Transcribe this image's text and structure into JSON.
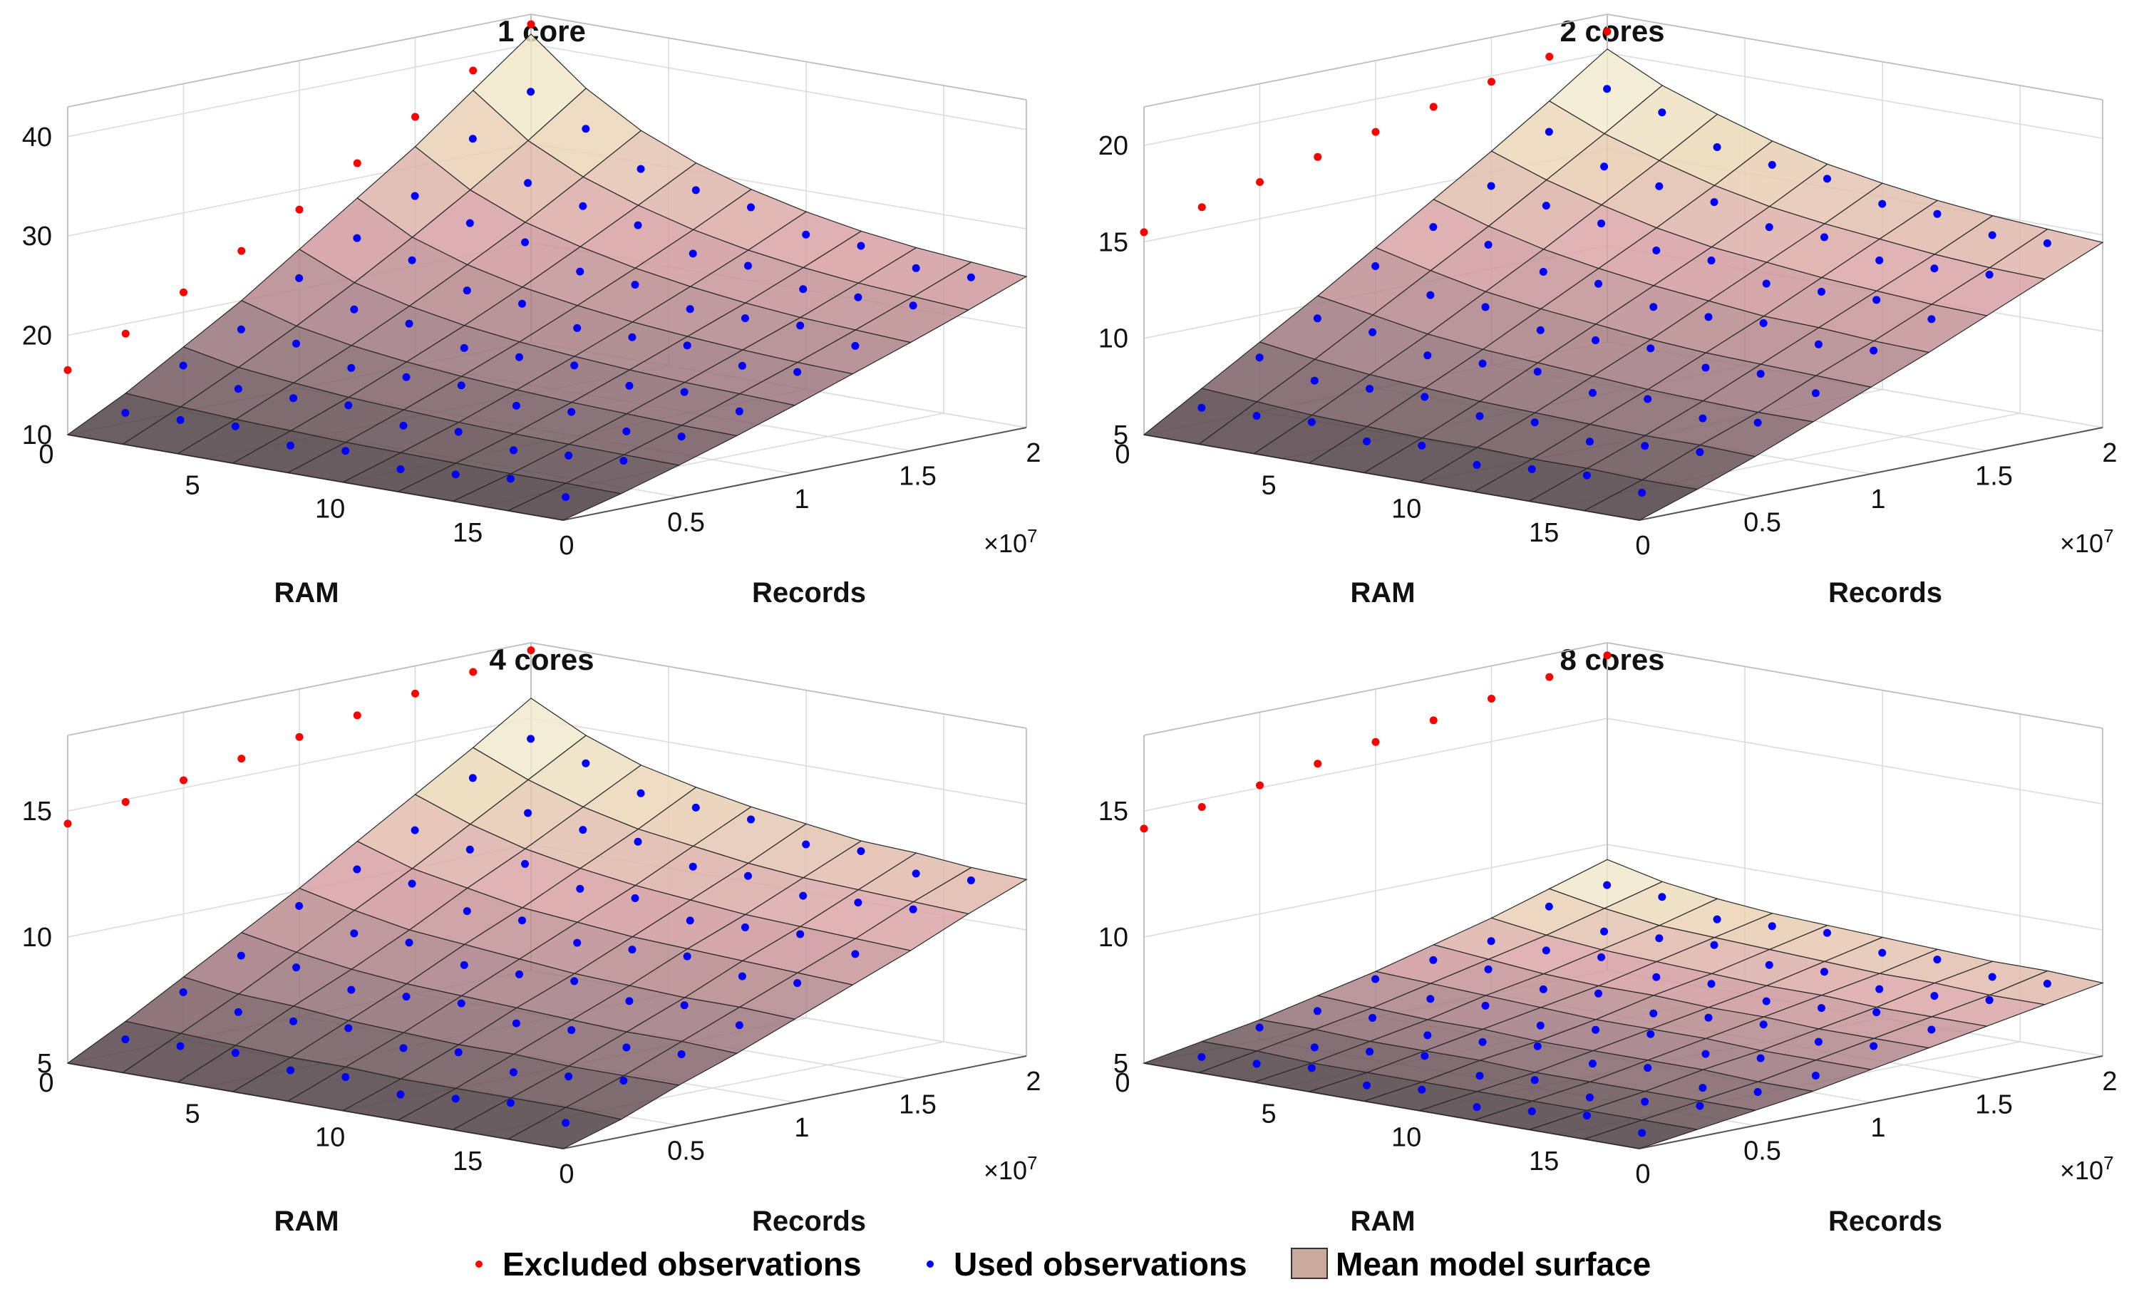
{
  "chart_data": [
    {
      "type": "surface3d",
      "title": "1 core",
      "xlabel": "RAM",
      "ylabel": "Records",
      "x_ticks": [
        "0",
        "5",
        "10",
        "15"
      ],
      "y_ticks": [
        "0",
        "0.5",
        "1",
        "1.5",
        "2"
      ],
      "y_multiplier": "×10",
      "y_multiplier_exp": "7",
      "z_ticks": [
        10,
        20,
        30,
        40
      ],
      "zlim": [
        10,
        43
      ],
      "ram_values": [
        0,
        2,
        4,
        6,
        8,
        10,
        12,
        14,
        16,
        18
      ],
      "records_values_x1e7": [
        0,
        0.25,
        0.5,
        0.75,
        1.0,
        1.25,
        1.5,
        1.75,
        2.0
      ],
      "model_surface_rows": [
        [
          10.0,
          13.0,
          16.5,
          20.0,
          24.0,
          28.0,
          32.0,
          36.5,
          41.0
        ],
        [
          10.0,
          12.6,
          15.4,
          18.4,
          21.6,
          25.0,
          28.6,
          32.4,
          36.5
        ],
        [
          10.0,
          12.3,
          14.8,
          17.4,
          20.2,
          23.2,
          26.3,
          29.7,
          33.2
        ],
        [
          10.0,
          12.1,
          14.3,
          16.7,
          19.2,
          21.9,
          24.8,
          27.8,
          30.9
        ],
        [
          10.0,
          11.9,
          14.0,
          16.2,
          18.5,
          21.0,
          23.6,
          26.3,
          29.2
        ],
        [
          10.0,
          11.8,
          13.7,
          15.8,
          18.0,
          20.3,
          22.7,
          25.2,
          27.9
        ],
        [
          10.0,
          11.7,
          13.5,
          15.5,
          17.6,
          19.8,
          22.0,
          24.4,
          26.9
        ],
        [
          10.0,
          11.6,
          13.4,
          15.3,
          17.3,
          19.4,
          21.5,
          23.8,
          26.2
        ],
        [
          10.0,
          11.6,
          13.3,
          15.1,
          17.1,
          19.1,
          21.2,
          23.4,
          25.7
        ],
        [
          10.0,
          11.5,
          13.2,
          15.0,
          16.9,
          18.9,
          20.9,
          23.0,
          25.2
        ]
      ],
      "excluded_observations": [
        16.5,
        19.0,
        22.0,
        25.0,
        28.0,
        31.5,
        35.0,
        38.5,
        42.0
      ]
    },
    {
      "type": "surface3d",
      "title": "2 cores",
      "xlabel": "RAM",
      "ylabel": "Records",
      "x_ticks": [
        "0",
        "5",
        "10",
        "15"
      ],
      "y_ticks": [
        "0",
        "0.5",
        "1",
        "1.5",
        "2"
      ],
      "y_multiplier": "×10",
      "y_multiplier_exp": "7",
      "z_ticks": [
        5,
        10,
        15,
        20
      ],
      "zlim": [
        5,
        22
      ],
      "ram_values": [
        0,
        2,
        4,
        6,
        8,
        10,
        12,
        14,
        16,
        18
      ],
      "records_values_x1e7": [
        0,
        0.25,
        0.5,
        0.75,
        1.0,
        1.25,
        1.5,
        1.75,
        2.0
      ],
      "model_surface_rows": [
        [
          5.0,
          6.8,
          8.6,
          10.4,
          12.3,
          14.2,
          16.1,
          18.1,
          20.2
        ],
        [
          5.0,
          6.6,
          8.2,
          9.9,
          11.6,
          13.3,
          15.1,
          16.9,
          18.8
        ],
        [
          5.0,
          6.4,
          7.9,
          9.4,
          11.0,
          12.6,
          14.3,
          16.0,
          17.8
        ],
        [
          5.0,
          6.3,
          7.7,
          9.1,
          10.6,
          12.1,
          13.6,
          15.2,
          16.9
        ],
        [
          5.0,
          6.2,
          7.5,
          8.9,
          10.3,
          11.7,
          13.1,
          14.6,
          16.2
        ],
        [
          5.0,
          6.2,
          7.4,
          8.7,
          10.0,
          11.4,
          12.8,
          14.2,
          15.7
        ],
        [
          5.0,
          6.1,
          7.3,
          8.5,
          9.8,
          11.1,
          12.5,
          13.9,
          15.3
        ],
        [
          5.0,
          6.1,
          7.2,
          8.4,
          9.7,
          11.0,
          12.3,
          13.6,
          15.0
        ],
        [
          5.0,
          6.0,
          7.2,
          8.3,
          9.6,
          10.8,
          12.1,
          13.4,
          14.8
        ],
        [
          5.0,
          6.0,
          7.1,
          8.3,
          9.5,
          10.7,
          12.0,
          13.3,
          14.6
        ]
      ],
      "excluded_observations": [
        15.5,
        16.2,
        16.9,
        17.6,
        18.3,
        19.0,
        19.7,
        20.4,
        21.1
      ]
    },
    {
      "type": "surface3d",
      "title": "4 cores",
      "xlabel": "RAM",
      "ylabel": "Records",
      "x_ticks": [
        "0",
        "5",
        "10",
        "15"
      ],
      "y_ticks": [
        "0",
        "0.5",
        "1",
        "1.5",
        "2"
      ],
      "y_multiplier": "×10",
      "y_multiplier_exp": "7",
      "z_ticks": [
        5,
        10,
        15
      ],
      "zlim": [
        5,
        18
      ],
      "ram_values": [
        0,
        2,
        4,
        6,
        8,
        10,
        12,
        14,
        16,
        18
      ],
      "records_values_x1e7": [
        0,
        0.25,
        0.5,
        0.75,
        1.0,
        1.25,
        1.5,
        1.75,
        2.0
      ],
      "model_surface_rows": [
        [
          5.0,
          6.2,
          7.5,
          8.8,
          10.1,
          11.5,
          12.9,
          14.3,
          15.8
        ],
        [
          5.0,
          6.1,
          7.2,
          8.4,
          9.6,
          10.8,
          12.1,
          13.4,
          14.7
        ],
        [
          5.0,
          6.0,
          7.1,
          8.1,
          9.2,
          10.4,
          11.5,
          12.7,
          13.9
        ],
        [
          5.0,
          5.9,
          6.9,
          7.9,
          9.0,
          10.0,
          11.1,
          12.2,
          13.4
        ],
        [
          5.0,
          5.9,
          6.8,
          7.8,
          8.8,
          9.8,
          10.8,
          11.9,
          13.0
        ],
        [
          5.0,
          5.8,
          6.7,
          7.7,
          8.6,
          9.6,
          10.6,
          11.6,
          12.7
        ],
        [
          5.0,
          5.8,
          6.7,
          7.6,
          8.5,
          9.5,
          10.4,
          11.4,
          12.4
        ],
        [
          5.0,
          5.8,
          6.6,
          7.5,
          8.4,
          9.4,
          10.3,
          11.3,
          12.3
        ],
        [
          5.0,
          5.8,
          6.6,
          7.5,
          8.4,
          9.3,
          10.2,
          11.2,
          12.1
        ],
        [
          5.0,
          5.7,
          6.6,
          7.4,
          8.3,
          9.2,
          10.1,
          11.1,
          12.0
        ]
      ],
      "excluded_observations": [
        14.5,
        14.9,
        15.3,
        15.7,
        16.1,
        16.5,
        16.9,
        17.3,
        17.7
      ]
    },
    {
      "type": "surface3d",
      "title": "8 cores",
      "xlabel": "RAM",
      "ylabel": "Records",
      "x_ticks": [
        "0",
        "5",
        "10",
        "15"
      ],
      "y_ticks": [
        "0",
        "0.5",
        "1",
        "1.5",
        "2"
      ],
      "y_multiplier": "×10",
      "y_multiplier_exp": "7",
      "z_ticks": [
        5,
        10,
        15
      ],
      "zlim": [
        5,
        18
      ],
      "ram_values": [
        0,
        2,
        4,
        6,
        8,
        10,
        12,
        14,
        16,
        18
      ],
      "records_values_x1e7": [
        0,
        0.25,
        0.5,
        0.75,
        1.0,
        1.25,
        1.5,
        1.75,
        2.0
      ],
      "model_surface_rows": [
        [
          5.0,
          5.4,
          5.8,
          6.3,
          6.8,
          7.4,
          8.0,
          8.7,
          9.4
        ],
        [
          5.0,
          5.4,
          5.8,
          6.2,
          6.7,
          7.2,
          7.7,
          8.3,
          8.9
        ],
        [
          5.0,
          5.3,
          5.7,
          6.1,
          6.6,
          7.0,
          7.5,
          8.0,
          8.6
        ],
        [
          5.0,
          5.3,
          5.7,
          6.1,
          6.5,
          6.9,
          7.4,
          7.9,
          8.4
        ],
        [
          5.0,
          5.3,
          5.7,
          6.0,
          6.4,
          6.9,
          7.3,
          7.8,
          8.3
        ],
        [
          5.0,
          5.3,
          5.6,
          6.0,
          6.4,
          6.8,
          7.2,
          7.7,
          8.2
        ],
        [
          5.0,
          5.3,
          5.6,
          6.0,
          6.4,
          6.8,
          7.2,
          7.6,
          8.1
        ],
        [
          5.0,
          5.3,
          5.6,
          6.0,
          6.3,
          6.7,
          7.1,
          7.6,
          8.0
        ],
        [
          5.0,
          5.3,
          5.6,
          5.9,
          6.3,
          6.7,
          7.1,
          7.5,
          8.0
        ],
        [
          5.0,
          5.3,
          5.6,
          5.9,
          6.3,
          6.7,
          7.1,
          7.5,
          7.9
        ]
      ],
      "excluded_observations": [
        14.3,
        14.7,
        15.1,
        15.5,
        15.9,
        16.3,
        16.7,
        17.1,
        17.5
      ]
    }
  ],
  "legend": {
    "excluded_label": "Excluded observations",
    "used_label": "Used observations",
    "surface_label": "Mean model surface",
    "excluded_color": "#ff0000",
    "used_color": "#0000ff",
    "surface_color": "#c9a99a"
  }
}
